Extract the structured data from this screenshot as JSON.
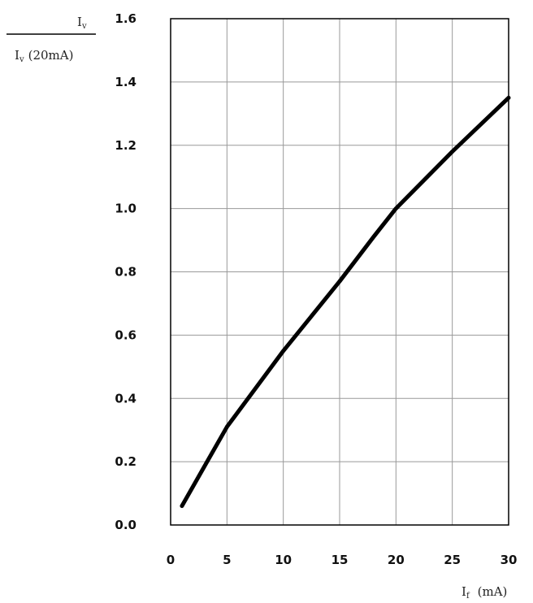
{
  "chart_data": {
    "type": "line",
    "title": "",
    "y_label": {
      "numerator_main": "I",
      "numerator_sub": "v",
      "denominator_main": "I",
      "denominator_sub": "v",
      "denominator_suffix": "(20mA)"
    },
    "x_label": {
      "main": "I",
      "sub": "f",
      "unit": "(mA)"
    },
    "xlim": [
      0,
      30
    ],
    "ylim": [
      0.0,
      1.6
    ],
    "x_ticks": [
      0,
      5,
      10,
      15,
      20,
      25,
      30
    ],
    "x_tick_labels": [
      "0",
      "5",
      "10",
      "15",
      "20",
      "25",
      "30"
    ],
    "y_ticks": [
      0.0,
      0.2,
      0.4,
      0.6,
      0.8,
      1.0,
      1.2,
      1.4,
      1.6
    ],
    "y_tick_labels": [
      "0.0",
      "0.2",
      "0.4",
      "0.6",
      "0.8",
      "1.0",
      "1.2",
      "1.4",
      "1.6"
    ],
    "grid": true,
    "series": [
      {
        "x": [
          1,
          5,
          10,
          15,
          18,
          20,
          25,
          30
        ],
        "y": [
          0.06,
          0.31,
          0.55,
          0.77,
          0.91,
          1.0,
          1.18,
          1.35
        ]
      }
    ],
    "colors": {
      "line": "#000000",
      "grid": "#999999",
      "frame": "#000000"
    }
  }
}
